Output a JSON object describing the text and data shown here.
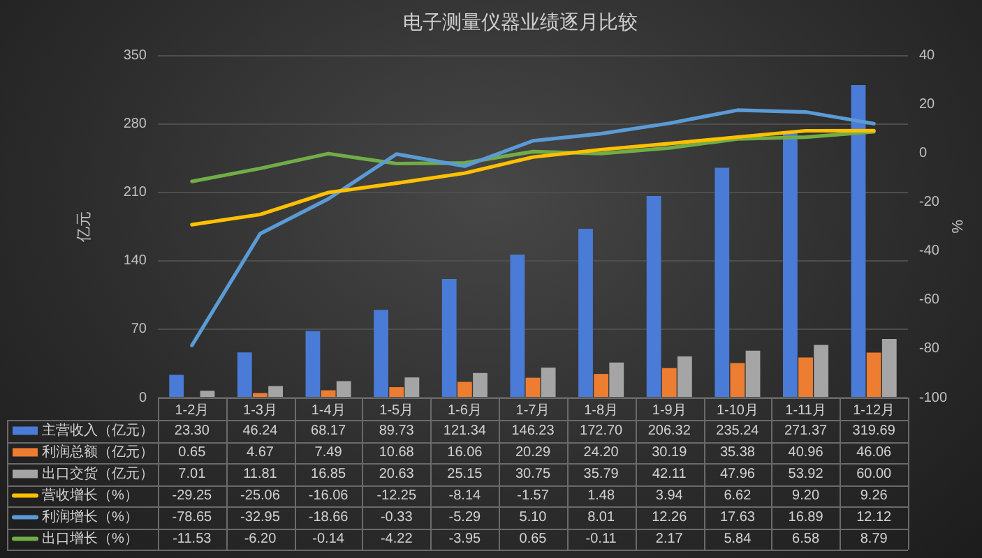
{
  "chart_data": {
    "type": "bar",
    "title": "电子测量仪器业绩逐月比较",
    "ylabel": "亿元",
    "y2label": "%",
    "categories": [
      "1-2月",
      "1-3月",
      "1-4月",
      "1-5月",
      "1-6月",
      "1-7月",
      "1-8月",
      "1-9月",
      "1-10月",
      "1-11月",
      "1-12月"
    ],
    "series": [
      {
        "name": "主营收入（亿元）",
        "color": "#4a7bd6",
        "values": [
          23.3,
          46.24,
          68.17,
          89.73,
          121.34,
          146.23,
          172.7,
          206.32,
          235.24,
          271.37,
          319.69
        ],
        "value_labels": [
          "23.30",
          "46.24",
          "68.17",
          "89.73",
          "121.34",
          "146.23",
          "172.70",
          "206.32",
          "235.24",
          "271.37",
          "319.69"
        ]
      },
      {
        "name": "利润总额（亿元）",
        "color": "#ed7d31",
        "values": [
          0.65,
          4.67,
          7.49,
          10.68,
          16.06,
          20.29,
          24.2,
          30.19,
          35.38,
          40.96,
          46.06
        ],
        "value_labels": [
          "0.65",
          "4.67",
          "7.49",
          "10.68",
          "16.06",
          "20.29",
          "24.20",
          "30.19",
          "35.38",
          "40.96",
          "46.06"
        ]
      },
      {
        "name": "出口交货（亿元）",
        "color": "#a5a5a5",
        "values": [
          7.01,
          11.81,
          16.85,
          20.63,
          25.15,
          30.75,
          35.79,
          42.11,
          47.96,
          53.92,
          60.0
        ],
        "value_labels": [
          "7.01",
          "11.81",
          "16.85",
          "20.63",
          "25.15",
          "30.75",
          "35.79",
          "42.11",
          "47.96",
          "53.92",
          "60.00"
        ]
      },
      {
        "name": "营收增长（%）",
        "type": "line",
        "axis": "y2",
        "color": "#ffc000",
        "values": [
          -29.25,
          -25.06,
          -16.06,
          -12.25,
          -8.14,
          -1.57,
          1.48,
          3.94,
          6.62,
          9.2,
          9.26
        ],
        "value_labels": [
          "-29.25",
          "-25.06",
          "-16.06",
          "-12.25",
          "-8.14",
          "-1.57",
          "1.48",
          "3.94",
          "6.62",
          "9.20",
          "9.26"
        ]
      },
      {
        "name": "利润增长（%）",
        "type": "line",
        "axis": "y2",
        "color": "#5b9bd5",
        "values": [
          -78.65,
          -32.95,
          -18.66,
          -0.33,
          -5.29,
          5.1,
          8.01,
          12.26,
          17.63,
          16.89,
          12.12
        ],
        "value_labels": [
          "-78.65",
          "-32.95",
          "-18.66",
          "-0.33",
          "-5.29",
          "5.10",
          "8.01",
          "12.26",
          "17.63",
          "16.89",
          "12.12"
        ]
      },
      {
        "name": "出口增长（%）",
        "type": "line",
        "axis": "y2",
        "color": "#70ad47",
        "values": [
          -11.53,
          -6.2,
          -0.14,
          -4.22,
          -3.95,
          0.65,
          -0.11,
          2.17,
          5.84,
          6.58,
          8.79
        ],
        "value_labels": [
          "-11.53",
          "-6.20",
          "-0.14",
          "-4.22",
          "-3.95",
          "0.65",
          "-0.11",
          "2.17",
          "5.84",
          "6.58",
          "8.79"
        ]
      }
    ],
    "ylim": [
      0,
      350
    ],
    "yticks": [
      0,
      70,
      140,
      210,
      280,
      350
    ],
    "y2lim": [
      -100,
      40
    ],
    "y2ticks": [
      -100,
      -80,
      -60,
      -40,
      -20,
      0,
      20,
      40
    ],
    "grid": "y",
    "legend": "bottom",
    "marker": "none",
    "line_style": "solid"
  }
}
